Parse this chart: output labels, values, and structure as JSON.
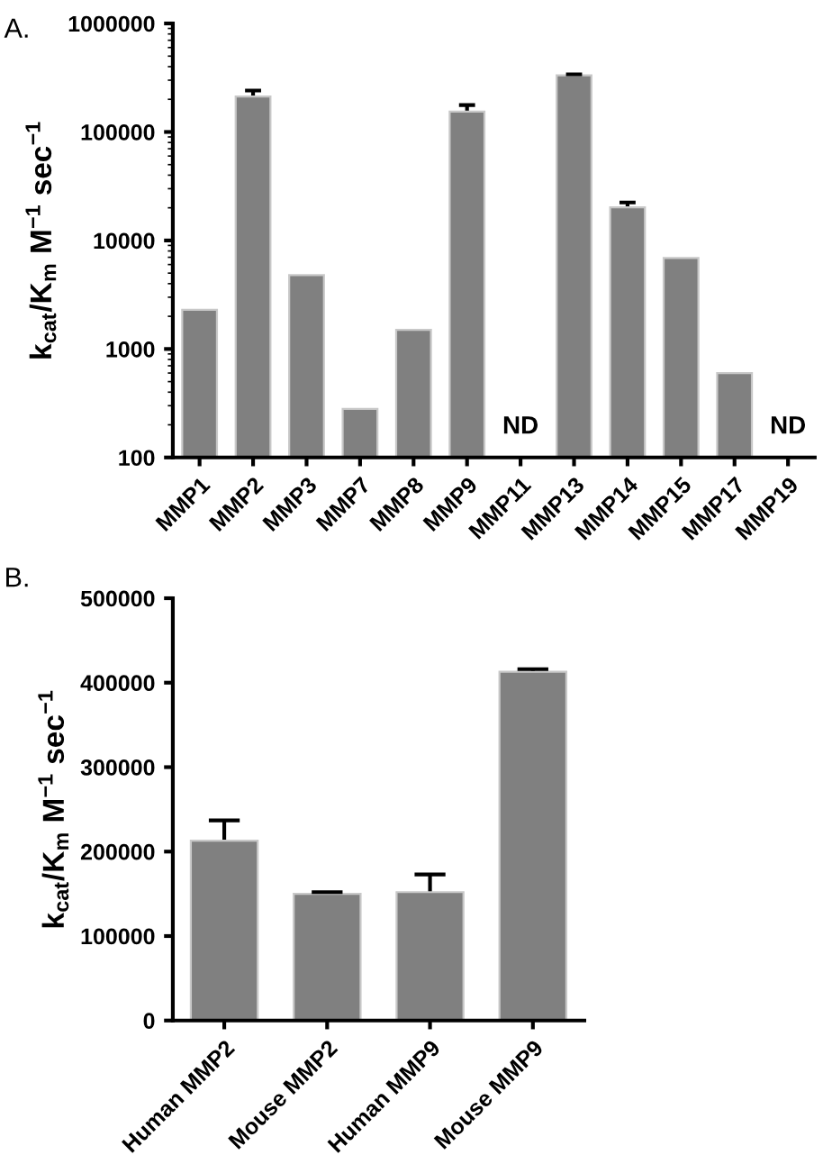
{
  "chart_data": [
    {
      "type": "bar",
      "title": "A.",
      "ylabel": "k$_{cat}$/K$_{m}$ M$^{−1}$ sec$^{−1}$",
      "log": true,
      "ylim": [
        100,
        1000000
      ],
      "yticks": [
        100,
        1000,
        10000,
        100000,
        1000000
      ],
      "grid": false,
      "legend": false,
      "categories": [
        "MMP1",
        "MMP2",
        "MMP3",
        "MMP7",
        "MMP8",
        "MMP9",
        "MMP11",
        "MMP13",
        "MMP14",
        "MMP15",
        "MMP17",
        "MMP19"
      ],
      "series": [
        {
          "color": "#808080",
          "values": [
            2300,
            212000,
            4800,
            280,
            1500,
            154000,
            null,
            332000,
            20200,
            6900,
            600,
            null
          ],
          "errors": [
            null,
            29000,
            null,
            null,
            null,
            23000,
            null,
            8000,
            2200,
            null,
            null,
            null
          ]
        }
      ],
      "annotations": [
        "ND",
        "ND"
      ]
    },
    {
      "type": "bar",
      "title": "B.",
      "ylabel": "k$_{cat}$/K$_{m}$ M$^{−1}$ sec$^{−1}$",
      "ylim": [
        0,
        500000
      ],
      "yticks": [
        0,
        100000,
        200000,
        300000,
        400000,
        500000
      ],
      "grid": false,
      "legend": false,
      "categories": [
        "Human MMP2",
        "Mouse MMP2",
        "Human MMP9",
        "Mouse MMP9"
      ],
      "series": [
        {
          "color": "#808080",
          "values": [
            213000,
            150000,
            152000,
            413000
          ],
          "errors": [
            24000,
            2000,
            21000,
            3000
          ]
        }
      ]
    }
  ]
}
